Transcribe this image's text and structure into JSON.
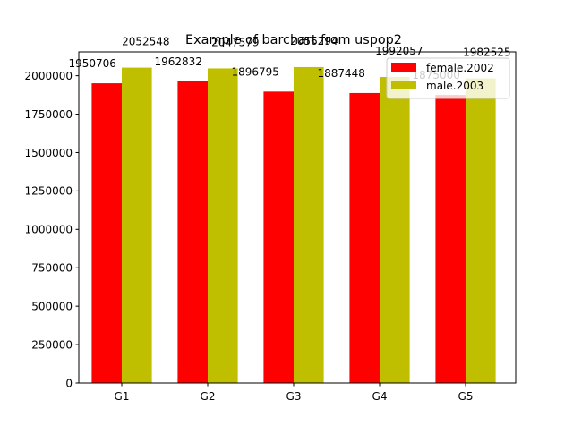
{
  "chart_data": {
    "type": "bar",
    "title": "Example of barchart from uspop2",
    "xlabel": "",
    "ylabel": "",
    "categories": [
      "G1",
      "G2",
      "G3",
      "G4",
      "G5"
    ],
    "series": [
      {
        "name": "female.2002",
        "color": "#ff0000",
        "values": [
          1950706,
          1962832,
          1896795,
          1887448,
          1875000
        ]
      },
      {
        "name": "male.2003",
        "color": "#bfbf00",
        "values": [
          2052548,
          2047579,
          2056294,
          1992057,
          1982525
        ]
      }
    ],
    "data_labels": [
      [
        "1950706",
        "1962832",
        "1896795",
        "1887448",
        "1875000"
      ],
      [
        "2052548",
        "2047579",
        "2056294",
        "1992057",
        "1982525"
      ]
    ],
    "ylim": [
      0,
      2155000
    ],
    "yticks": [
      0,
      250000,
      500000,
      750000,
      1000000,
      1250000,
      1500000,
      1750000,
      2000000
    ],
    "ytick_labels": [
      "0",
      "250000",
      "500000",
      "750000",
      "1000000",
      "1250000",
      "1500000",
      "1750000",
      "2000000"
    ],
    "grid": false,
    "legend_position": "top-right"
  }
}
